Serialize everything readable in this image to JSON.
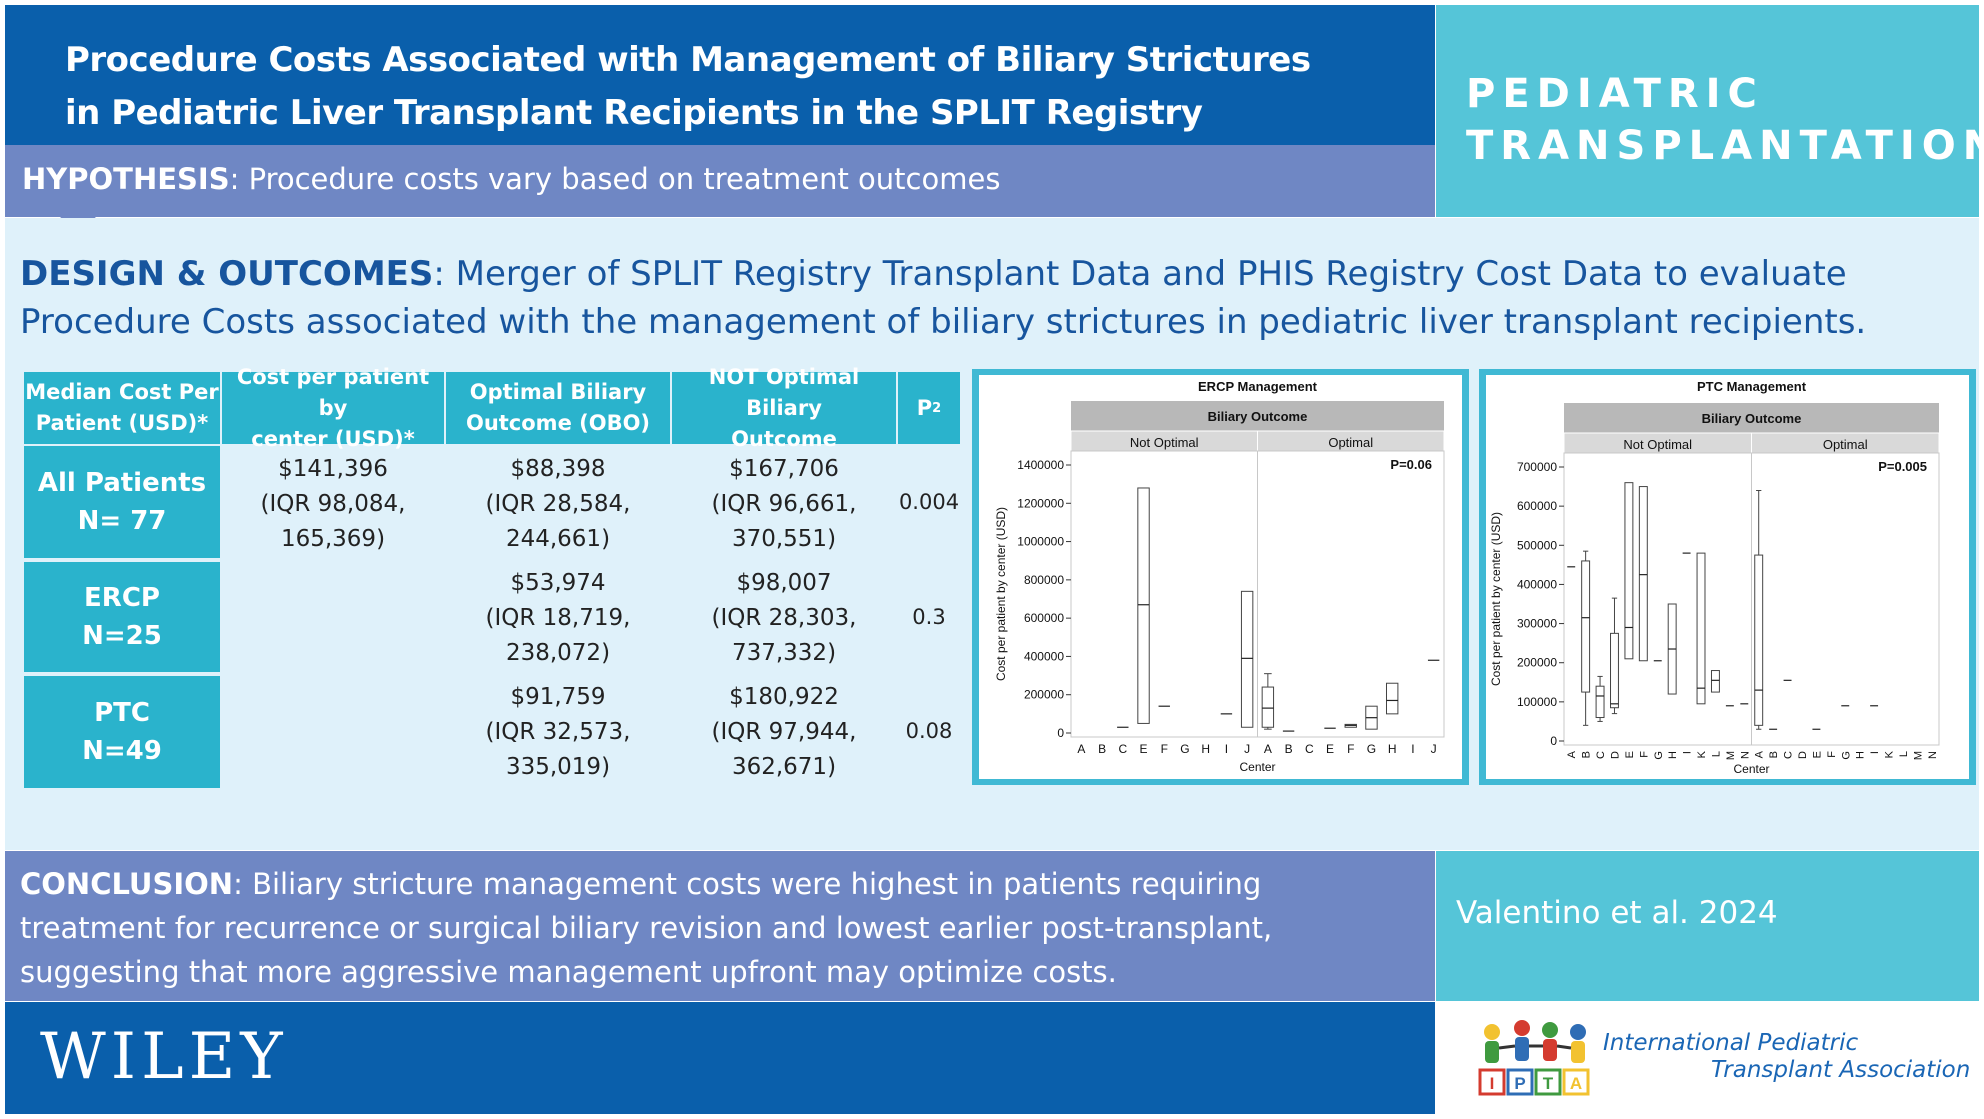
{
  "header": {
    "title_line1": "Procedure Costs Associated with Management of Biliary Strictures",
    "title_line2": "in Pediatric Liver Transplant Recipients in the SPLIT Registry",
    "hypothesis_label": "HYPOTHESIS",
    "hypothesis_text": ": Procedure costs vary based on treatment outcomes",
    "journal_line1": "PEDIATRIC",
    "journal_line2": "TRANSPLANTATION"
  },
  "design": {
    "label": "DESIGN & OUTCOMES",
    "text_line1": ": Merger of SPLIT Registry Transplant Data and PHIS Registry Cost Data to evaluate",
    "text_line2": "Procedure Costs associated with the management of biliary strictures in pediatric liver transplant recipients."
  },
  "table": {
    "headers": {
      "median_l1": "Median Cost Per",
      "median_l2": "Patient (USD)*",
      "center_l1": "Cost per patient by",
      "center_l2": "center (USD)*",
      "obo_l1": "Optimal Biliary",
      "obo_l2": "Outcome (OBO)",
      "not_l1": "NOT Optimal Biliary",
      "not_l2": "Outcome",
      "p": "P",
      "p_sup": "2"
    },
    "rows": [
      {
        "label_l1": "All Patients",
        "label_l2": "N= 77",
        "center_l1": "$141,396",
        "center_l2": "(IQR 98,084,",
        "center_l3": "165,369)",
        "obo_l1": "$88,398",
        "obo_l2": "(IQR 28,584,",
        "obo_l3": "244,661)",
        "not_l1": "$167,706",
        "not_l2": "(IQR 96,661,",
        "not_l3": "370,551)",
        "p": "0.004"
      },
      {
        "label_l1": "ERCP",
        "label_l2": "N=25",
        "obo_l1": "$53,974",
        "obo_l2": "(IQR 18,719,",
        "obo_l3": "238,072)",
        "not_l1": "$98,007",
        "not_l2": "(IQR 28,303,",
        "not_l3": "737,332)",
        "p": "0.3"
      },
      {
        "label_l1": "PTC",
        "label_l2": "N=49",
        "obo_l1": "$91,759",
        "obo_l2": "(IQR 32,573,",
        "obo_l3": "335,019)",
        "not_l1": "$180,922",
        "not_l2": "(IQR 97,944,",
        "not_l3": "362,671)",
        "p": "0.08"
      }
    ]
  },
  "chart_data": [
    {
      "type": "box",
      "title": "ERCP Management",
      "facet_title": "Biliary Outcome",
      "facets": [
        "Not Optimal",
        "Optimal"
      ],
      "xlabel": "Center",
      "ylabel": "Cost per patient by center (USD)",
      "annotation": "P=0.06",
      "ylim": [
        0,
        1400000
      ],
      "yticks": [
        0,
        200000,
        400000,
        600000,
        800000,
        1000000,
        1200000,
        1400000
      ],
      "categories": [
        "A",
        "B",
        "C",
        "E",
        "F",
        "G",
        "H",
        "I",
        "J"
      ],
      "series": [
        {
          "name": "Not Optimal",
          "boxes": [
            {
              "x": "C",
              "min": 30000,
              "q1": 30000,
              "median": 30000,
              "q3": 30000,
              "max": 30000
            },
            {
              "x": "E",
              "min": 50000,
              "q1": 50000,
              "median": 670000,
              "q3": 1280000,
              "max": 1280000
            },
            {
              "x": "F",
              "min": 140000,
              "q1": 140000,
              "median": 140000,
              "q3": 140000,
              "max": 140000
            },
            {
              "x": "I",
              "min": 100000,
              "q1": 100000,
              "median": 100000,
              "q3": 100000,
              "max": 100000
            },
            {
              "x": "J",
              "min": 30000,
              "q1": 30000,
              "median": 390000,
              "q3": 740000,
              "max": 740000
            }
          ]
        },
        {
          "name": "Optimal",
          "boxes": [
            {
              "x": "A",
              "min": 20000,
              "q1": 30000,
              "median": 130000,
              "q3": 240000,
              "max": 310000
            },
            {
              "x": "B",
              "min": 10000,
              "q1": 10000,
              "median": 10000,
              "q3": 10000,
              "max": 10000
            },
            {
              "x": "E",
              "min": 25000,
              "q1": 25000,
              "median": 25000,
              "q3": 25000,
              "max": 25000
            },
            {
              "x": "F",
              "min": 30000,
              "q1": 30000,
              "median": 40000,
              "q3": 45000,
              "max": 45000
            },
            {
              "x": "G",
              "min": 20000,
              "q1": 20000,
              "median": 80000,
              "q3": 140000,
              "max": 140000
            },
            {
              "x": "H",
              "min": 100000,
              "q1": 100000,
              "median": 170000,
              "q3": 260000,
              "max": 260000
            },
            {
              "x": "J",
              "min": 380000,
              "q1": 380000,
              "median": 380000,
              "q3": 380000,
              "max": 380000
            }
          ]
        }
      ]
    },
    {
      "type": "box",
      "title": "PTC Management",
      "facet_title": "Biliary Outcome",
      "facets": [
        "Not Optimal",
        "Optimal"
      ],
      "xlabel": "Center",
      "ylabel": "Cost per patient by center (USD)",
      "annotation": "P=0.005",
      "ylim": [
        0,
        700000
      ],
      "yticks": [
        0,
        100000,
        200000,
        300000,
        400000,
        500000,
        600000,
        700000
      ],
      "categories": [
        "A",
        "B",
        "C",
        "D",
        "E",
        "F",
        "G",
        "H",
        "I",
        "K",
        "L",
        "M",
        "N"
      ],
      "series": [
        {
          "name": "Not Optimal",
          "boxes": [
            {
              "x": "A",
              "min": 445000,
              "q1": 445000,
              "median": 445000,
              "q3": 445000,
              "max": 445000
            },
            {
              "x": "B",
              "min": 40000,
              "q1": 125000,
              "median": 315000,
              "q3": 460000,
              "max": 485000
            },
            {
              "x": "C",
              "min": 50000,
              "q1": 60000,
              "median": 115000,
              "q3": 140000,
              "max": 165000
            },
            {
              "x": "D",
              "min": 70000,
              "q1": 85000,
              "median": 95000,
              "q3": 275000,
              "max": 365000
            },
            {
              "x": "E",
              "min": 210000,
              "q1": 210000,
              "median": 290000,
              "q3": 660000,
              "max": 660000
            },
            {
              "x": "F",
              "min": 205000,
              "q1": 205000,
              "median": 425000,
              "q3": 650000,
              "max": 650000
            },
            {
              "x": "G",
              "min": 205000,
              "q1": 205000,
              "median": 205000,
              "q3": 205000,
              "max": 205000
            },
            {
              "x": "H",
              "min": 120000,
              "q1": 120000,
              "median": 235000,
              "q3": 350000,
              "max": 350000
            },
            {
              "x": "I",
              "min": 480000,
              "q1": 480000,
              "median": 480000,
              "q3": 480000,
              "max": 480000
            },
            {
              "x": "K",
              "min": 95000,
              "q1": 95000,
              "median": 135000,
              "q3": 480000,
              "max": 480000
            },
            {
              "x": "L",
              "min": 125000,
              "q1": 125000,
              "median": 155000,
              "q3": 180000,
              "max": 180000
            },
            {
              "x": "M",
              "min": 90000,
              "q1": 90000,
              "median": 90000,
              "q3": 90000,
              "max": 90000
            },
            {
              "x": "N",
              "min": 95000,
              "q1": 95000,
              "median": 95000,
              "q3": 95000,
              "max": 95000
            }
          ]
        },
        {
          "name": "Optimal",
          "boxes": [
            {
              "x": "A",
              "min": 30000,
              "q1": 40000,
              "median": 130000,
              "q3": 475000,
              "max": 640000
            },
            {
              "x": "B",
              "min": 30000,
              "q1": 30000,
              "median": 30000,
              "q3": 30000,
              "max": 30000
            },
            {
              "x": "C",
              "min": 155000,
              "q1": 155000,
              "median": 155000,
              "q3": 155000,
              "max": 155000
            },
            {
              "x": "E",
              "min": 30000,
              "q1": 30000,
              "median": 30000,
              "q3": 30000,
              "max": 30000
            },
            {
              "x": "G",
              "min": 90000,
              "q1": 90000,
              "median": 90000,
              "q3": 90000,
              "max": 90000
            },
            {
              "x": "I",
              "min": 90000,
              "q1": 90000,
              "median": 90000,
              "q3": 90000,
              "max": 90000
            }
          ]
        }
      ]
    }
  ],
  "conclusion": {
    "label": "CONCLUSION",
    "text_line1": ": Biliary stricture management costs were highest in patients requiring",
    "text_line2": "treatment for recurrence or surgical biliary revision and lowest earlier post-transplant,",
    "text_line3": "suggesting that more aggressive management upfront may optimize costs."
  },
  "citation": "Valentino et al. 2024",
  "footer": {
    "publisher": "WILEY",
    "ipta_line1": "International Pediatric",
    "ipta_line2": "Transplant Association",
    "ipta_blocks": [
      "I",
      "P",
      "T",
      "A"
    ],
    "colors": {
      "block_blue": "#2f6db5",
      "block_red": "#d43b2f",
      "block_green": "#3f9a3f",
      "block_yellow": "#f2c230"
    }
  }
}
